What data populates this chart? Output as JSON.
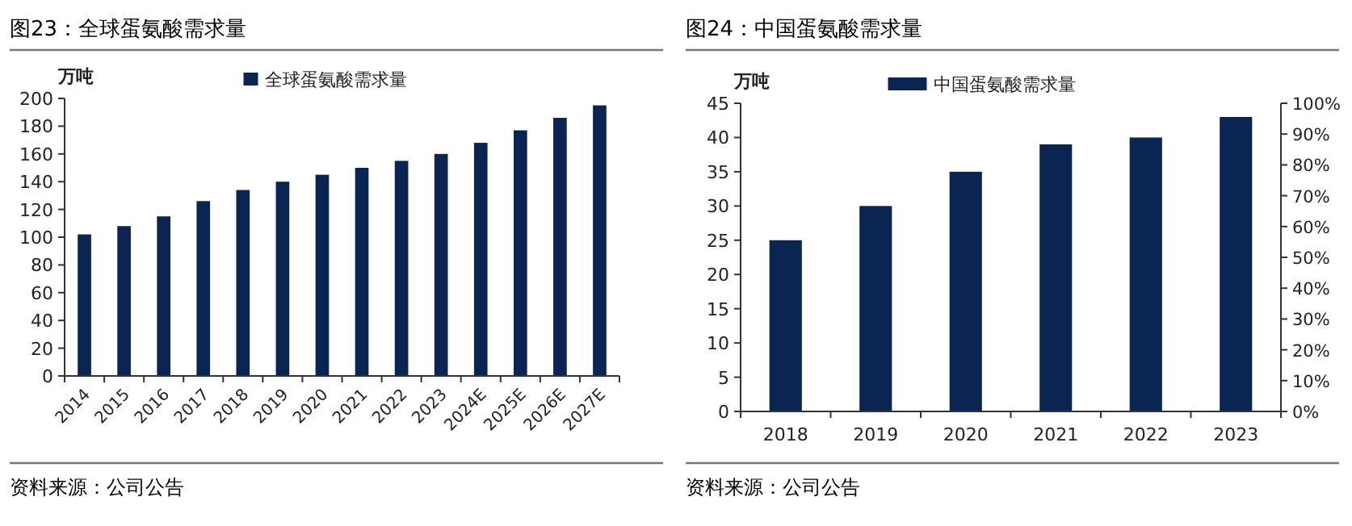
{
  "chart_data": [
    {
      "type": "bar",
      "title": "图23：全球蛋氨酸需求量",
      "ylabel": "万吨",
      "categories": [
        "2014",
        "2015",
        "2016",
        "2017",
        "2018",
        "2019",
        "2020",
        "2021",
        "2022",
        "2023",
        "2024E",
        "2025E",
        "2026E",
        "2027E"
      ],
      "series": [
        {
          "name": "全球蛋氨酸需求量",
          "color": "#0b2553",
          "values": [
            102,
            108,
            115,
            126,
            134,
            140,
            145,
            150,
            155,
            160,
            168,
            177,
            186,
            195
          ]
        }
      ],
      "ylim": [
        0,
        200
      ],
      "yticks": [
        0,
        20,
        40,
        60,
        80,
        100,
        120,
        140,
        160,
        180,
        200
      ],
      "legend": "top",
      "annotations": [
        "资料来源：公司公告"
      ]
    },
    {
      "type": "bar",
      "title": "图24：中国蛋氨酸需求量",
      "ylabel": "万吨",
      "categories": [
        "2018",
        "2019",
        "2020",
        "2021",
        "2022",
        "2023"
      ],
      "series": [
        {
          "name": "中国蛋氨酸需求量",
          "color": "#0b2553",
          "values": [
            25,
            30,
            35,
            39,
            40,
            43
          ]
        }
      ],
      "ylim": [
        0,
        45
      ],
      "yticks": [
        0,
        5,
        10,
        15,
        20,
        25,
        30,
        35,
        40,
        45
      ],
      "y2lim": [
        0,
        100
      ],
      "y2ticks": [
        {
          "value": 0,
          "label": "0%"
        },
        {
          "value": 10,
          "label": "10%"
        },
        {
          "value": 20,
          "label": "20%"
        },
        {
          "value": 30,
          "label": "30%"
        },
        {
          "value": 40,
          "label": "40%"
        },
        {
          "value": 50,
          "label": "50%"
        },
        {
          "value": 60,
          "label": "60%"
        },
        {
          "value": 70,
          "label": "70%"
        },
        {
          "value": 80,
          "label": "80%"
        },
        {
          "value": 90,
          "label": "90%"
        },
        {
          "value": 100,
          "label": "100%"
        }
      ],
      "legend": "top",
      "annotations": [
        "资料来源：公司公告"
      ]
    }
  ]
}
